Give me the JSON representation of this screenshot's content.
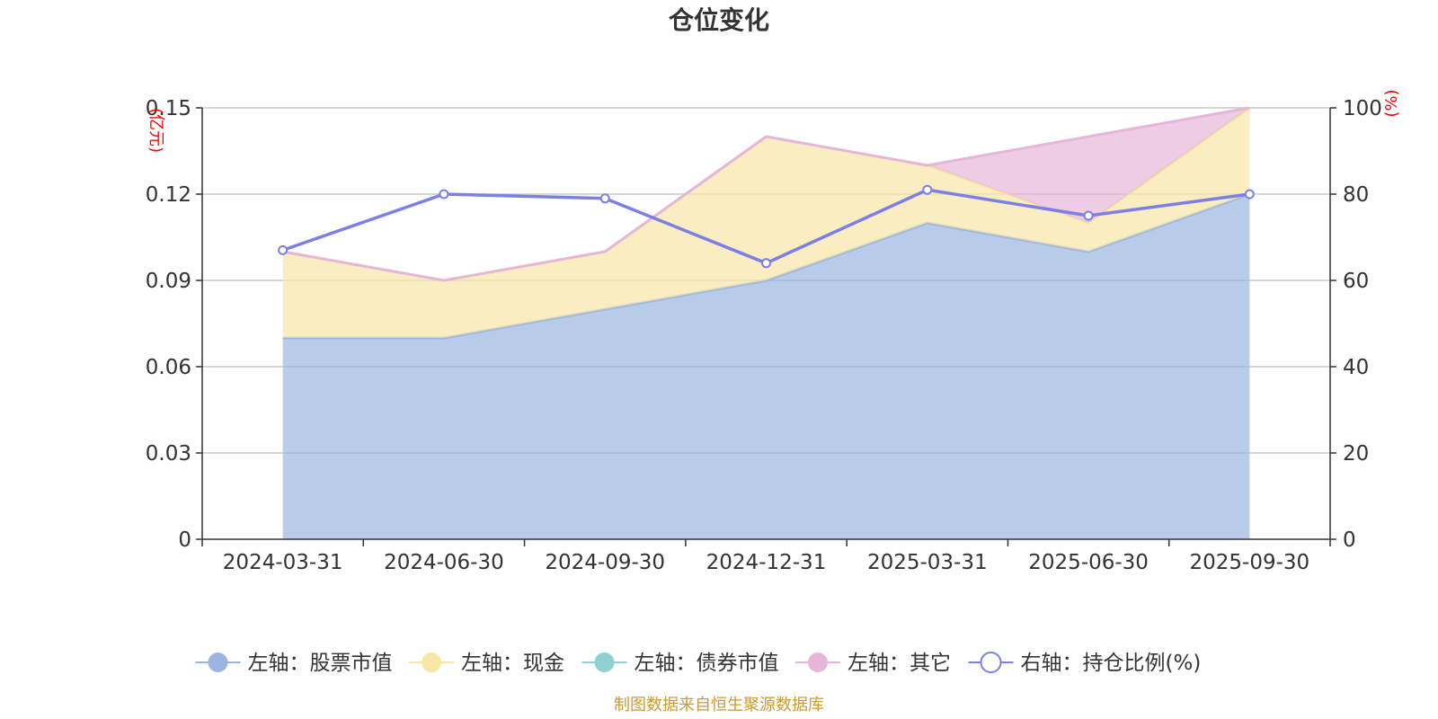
{
  "chart_data": {
    "type": "area",
    "title": "仓位变化",
    "categories": [
      "2024-03-31",
      "2024-06-30",
      "2024-09-30",
      "2024-12-31",
      "2025-03-31",
      "2025-06-30",
      "2025-09-30"
    ],
    "left_axis": {
      "unit": "(亿元)",
      "ylim": [
        0,
        0.15
      ],
      "ticks": [
        "0",
        "0.03",
        "0.06",
        "0.09",
        "0.12",
        "0.15"
      ]
    },
    "right_axis": {
      "unit": "(%)",
      "ylim": [
        0,
        100
      ],
      "ticks": [
        "0",
        "20",
        "40",
        "60",
        "80",
        "100"
      ]
    },
    "stacked_series": [
      {
        "name": "左轴：股票市值",
        "axis": "left",
        "color": "#9ab6e0",
        "values": [
          0.07,
          0.07,
          0.08,
          0.09,
          0.11,
          0.1,
          0.12
        ]
      },
      {
        "name": "左轴：现金",
        "axis": "left",
        "color": "#f7e6a6",
        "values": [
          0.03,
          0.02,
          0.02,
          0.05,
          0.02,
          0.01,
          0.03
        ]
      },
      {
        "name": "左轴：债券市值",
        "axis": "left",
        "color": "#8fd0d0",
        "values": [
          0,
          0,
          0,
          0,
          0,
          0,
          0
        ]
      },
      {
        "name": "左轴：其它",
        "axis": "left",
        "color": "#e6b6d8",
        "values": [
          0,
          0,
          0,
          0,
          0,
          0.03,
          0
        ]
      }
    ],
    "line_series": {
      "name": "右轴：持仓比例(%)",
      "axis": "right",
      "color": "#7b7fe8",
      "values": [
        67,
        80,
        79,
        64,
        81,
        75,
        80
      ]
    },
    "grid": true,
    "legend_position": "bottom"
  },
  "source_note": "制图数据来自恒生聚源数据库"
}
